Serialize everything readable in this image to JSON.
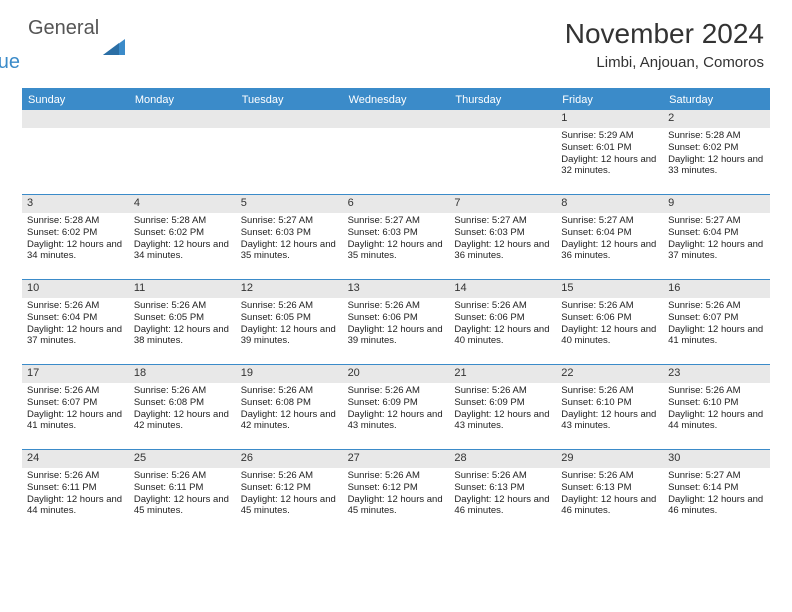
{
  "brand": {
    "part1": "General",
    "part2": "Blue"
  },
  "title": "November 2024",
  "location": "Limbi, Anjouan, Comoros",
  "colors": {
    "accent": "#3b8bc9",
    "header_bg": "#3b8bc9",
    "daynum_bg": "#e8e8e8",
    "text": "#222222",
    "bg": "#ffffff"
  },
  "dow": [
    "Sunday",
    "Monday",
    "Tuesday",
    "Wednesday",
    "Thursday",
    "Friday",
    "Saturday"
  ],
  "weeks": [
    [
      {
        "n": "",
        "sr": "",
        "ss": "",
        "dl": ""
      },
      {
        "n": "",
        "sr": "",
        "ss": "",
        "dl": ""
      },
      {
        "n": "",
        "sr": "",
        "ss": "",
        "dl": ""
      },
      {
        "n": "",
        "sr": "",
        "ss": "",
        "dl": ""
      },
      {
        "n": "",
        "sr": "",
        "ss": "",
        "dl": ""
      },
      {
        "n": "1",
        "sr": "Sunrise: 5:29 AM",
        "ss": "Sunset: 6:01 PM",
        "dl": "Daylight: 12 hours and 32 minutes."
      },
      {
        "n": "2",
        "sr": "Sunrise: 5:28 AM",
        "ss": "Sunset: 6:02 PM",
        "dl": "Daylight: 12 hours and 33 minutes."
      }
    ],
    [
      {
        "n": "3",
        "sr": "Sunrise: 5:28 AM",
        "ss": "Sunset: 6:02 PM",
        "dl": "Daylight: 12 hours and 34 minutes."
      },
      {
        "n": "4",
        "sr": "Sunrise: 5:28 AM",
        "ss": "Sunset: 6:02 PM",
        "dl": "Daylight: 12 hours and 34 minutes."
      },
      {
        "n": "5",
        "sr": "Sunrise: 5:27 AM",
        "ss": "Sunset: 6:03 PM",
        "dl": "Daylight: 12 hours and 35 minutes."
      },
      {
        "n": "6",
        "sr": "Sunrise: 5:27 AM",
        "ss": "Sunset: 6:03 PM",
        "dl": "Daylight: 12 hours and 35 minutes."
      },
      {
        "n": "7",
        "sr": "Sunrise: 5:27 AM",
        "ss": "Sunset: 6:03 PM",
        "dl": "Daylight: 12 hours and 36 minutes."
      },
      {
        "n": "8",
        "sr": "Sunrise: 5:27 AM",
        "ss": "Sunset: 6:04 PM",
        "dl": "Daylight: 12 hours and 36 minutes."
      },
      {
        "n": "9",
        "sr": "Sunrise: 5:27 AM",
        "ss": "Sunset: 6:04 PM",
        "dl": "Daylight: 12 hours and 37 minutes."
      }
    ],
    [
      {
        "n": "10",
        "sr": "Sunrise: 5:26 AM",
        "ss": "Sunset: 6:04 PM",
        "dl": "Daylight: 12 hours and 37 minutes."
      },
      {
        "n": "11",
        "sr": "Sunrise: 5:26 AM",
        "ss": "Sunset: 6:05 PM",
        "dl": "Daylight: 12 hours and 38 minutes."
      },
      {
        "n": "12",
        "sr": "Sunrise: 5:26 AM",
        "ss": "Sunset: 6:05 PM",
        "dl": "Daylight: 12 hours and 39 minutes."
      },
      {
        "n": "13",
        "sr": "Sunrise: 5:26 AM",
        "ss": "Sunset: 6:06 PM",
        "dl": "Daylight: 12 hours and 39 minutes."
      },
      {
        "n": "14",
        "sr": "Sunrise: 5:26 AM",
        "ss": "Sunset: 6:06 PM",
        "dl": "Daylight: 12 hours and 40 minutes."
      },
      {
        "n": "15",
        "sr": "Sunrise: 5:26 AM",
        "ss": "Sunset: 6:06 PM",
        "dl": "Daylight: 12 hours and 40 minutes."
      },
      {
        "n": "16",
        "sr": "Sunrise: 5:26 AM",
        "ss": "Sunset: 6:07 PM",
        "dl": "Daylight: 12 hours and 41 minutes."
      }
    ],
    [
      {
        "n": "17",
        "sr": "Sunrise: 5:26 AM",
        "ss": "Sunset: 6:07 PM",
        "dl": "Daylight: 12 hours and 41 minutes."
      },
      {
        "n": "18",
        "sr": "Sunrise: 5:26 AM",
        "ss": "Sunset: 6:08 PM",
        "dl": "Daylight: 12 hours and 42 minutes."
      },
      {
        "n": "19",
        "sr": "Sunrise: 5:26 AM",
        "ss": "Sunset: 6:08 PM",
        "dl": "Daylight: 12 hours and 42 minutes."
      },
      {
        "n": "20",
        "sr": "Sunrise: 5:26 AM",
        "ss": "Sunset: 6:09 PM",
        "dl": "Daylight: 12 hours and 43 minutes."
      },
      {
        "n": "21",
        "sr": "Sunrise: 5:26 AM",
        "ss": "Sunset: 6:09 PM",
        "dl": "Daylight: 12 hours and 43 minutes."
      },
      {
        "n": "22",
        "sr": "Sunrise: 5:26 AM",
        "ss": "Sunset: 6:10 PM",
        "dl": "Daylight: 12 hours and 43 minutes."
      },
      {
        "n": "23",
        "sr": "Sunrise: 5:26 AM",
        "ss": "Sunset: 6:10 PM",
        "dl": "Daylight: 12 hours and 44 minutes."
      }
    ],
    [
      {
        "n": "24",
        "sr": "Sunrise: 5:26 AM",
        "ss": "Sunset: 6:11 PM",
        "dl": "Daylight: 12 hours and 44 minutes."
      },
      {
        "n": "25",
        "sr": "Sunrise: 5:26 AM",
        "ss": "Sunset: 6:11 PM",
        "dl": "Daylight: 12 hours and 45 minutes."
      },
      {
        "n": "26",
        "sr": "Sunrise: 5:26 AM",
        "ss": "Sunset: 6:12 PM",
        "dl": "Daylight: 12 hours and 45 minutes."
      },
      {
        "n": "27",
        "sr": "Sunrise: 5:26 AM",
        "ss": "Sunset: 6:12 PM",
        "dl": "Daylight: 12 hours and 45 minutes."
      },
      {
        "n": "28",
        "sr": "Sunrise: 5:26 AM",
        "ss": "Sunset: 6:13 PM",
        "dl": "Daylight: 12 hours and 46 minutes."
      },
      {
        "n": "29",
        "sr": "Sunrise: 5:26 AM",
        "ss": "Sunset: 6:13 PM",
        "dl": "Daylight: 12 hours and 46 minutes."
      },
      {
        "n": "30",
        "sr": "Sunrise: 5:27 AM",
        "ss": "Sunset: 6:14 PM",
        "dl": "Daylight: 12 hours and 46 minutes."
      }
    ]
  ]
}
